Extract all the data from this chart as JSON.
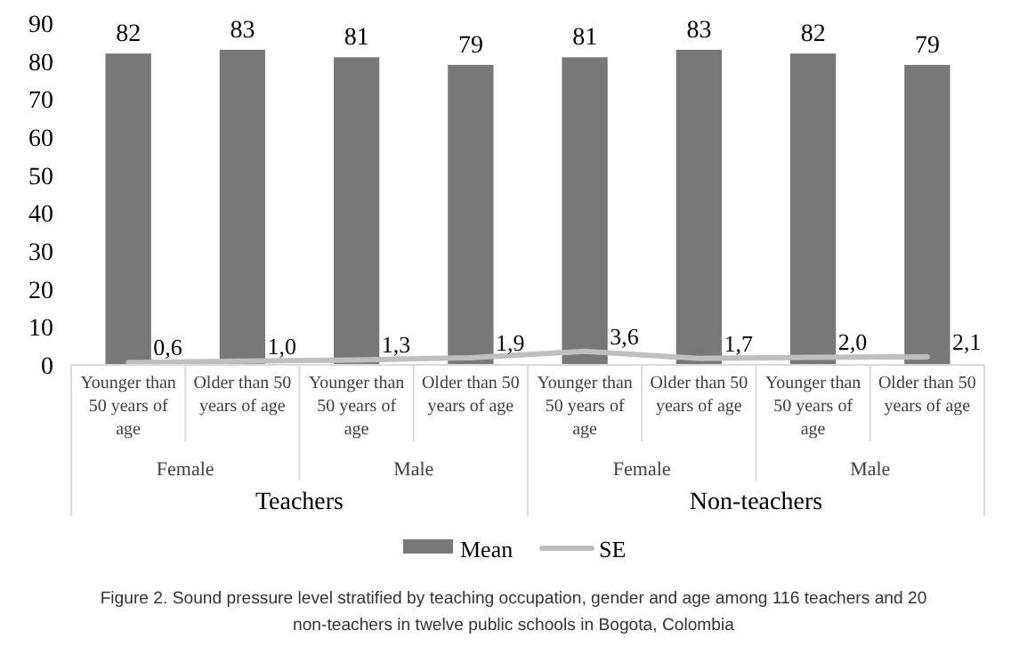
{
  "chart_data": {
    "type": "bar",
    "title": "Figure 2. Sound pressure level stratified by teaching occupation, gender and age among 116 teachers and 20 non-teachers in twelve public schools in Bogota, Colombia",
    "categories": [
      "Younger than 50 years of age",
      "Older than 50 years of age",
      "Younger than 50 years of age",
      "Older than 50 years of age",
      "Younger than 50 years of age",
      "Older than 50 years of age",
      "Younger than 50 years of age",
      "Older than 50 years of age"
    ],
    "annotations": [
      "Female",
      "Male",
      "Female",
      "Male",
      "Teachers",
      "Non-teachers"
    ],
    "series": [
      {
        "name": "Mean",
        "color": "#787878",
        "values": [
          82,
          83,
          81,
          79,
          81,
          83,
          82,
          79
        ],
        "value_labels": [
          "82",
          "83",
          "81",
          "79",
          "81",
          "83",
          "82",
          "79"
        ]
      },
      {
        "name": "SE",
        "type": "line",
        "color": "#bfbfbf",
        "values": [
          0.6,
          1.0,
          1.3,
          1.9,
          3.6,
          1.7,
          2.0,
          2.1
        ],
        "value_labels": [
          "0,6",
          "1,0",
          "1,3",
          "1,9",
          "3,6",
          "1,7",
          "2,0",
          "2,1"
        ]
      }
    ],
    "ylim": [
      0,
      90
    ],
    "yticks": [
      0,
      10,
      20,
      30,
      40,
      50,
      60,
      70,
      80,
      90
    ],
    "grid": false,
    "legend": "bottom",
    "line_style": "solid",
    "marker": "none"
  }
}
